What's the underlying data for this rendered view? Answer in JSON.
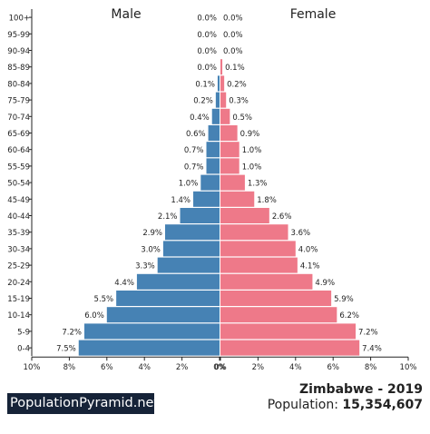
{
  "chart_data": {
    "type": "bar",
    "orientation": "horizontal-diverging",
    "male_label": "Male",
    "female_label": "Female",
    "categories": [
      "100+",
      "95-99",
      "90-94",
      "85-89",
      "80-84",
      "75-79",
      "70-74",
      "65-69",
      "60-64",
      "55-59",
      "50-54",
      "45-49",
      "40-44",
      "35-39",
      "30-34",
      "25-29",
      "20-24",
      "15-19",
      "10-14",
      "5-9",
      "0-4"
    ],
    "series": [
      {
        "name": "Male",
        "values": [
          0.0,
          0.0,
          0.0,
          0.0,
          0.1,
          0.2,
          0.4,
          0.6,
          0.7,
          0.7,
          1.0,
          1.4,
          2.1,
          2.9,
          3.0,
          3.3,
          4.4,
          5.5,
          6.0,
          7.2,
          7.5
        ],
        "color": "#4682b4"
      },
      {
        "name": "Female",
        "values": [
          0.0,
          0.0,
          0.0,
          0.1,
          0.2,
          0.3,
          0.5,
          0.9,
          1.0,
          1.0,
          1.3,
          1.8,
          2.6,
          3.6,
          4.0,
          4.1,
          4.9,
          5.9,
          6.2,
          7.2,
          7.4
        ],
        "color": "#ee7989"
      }
    ],
    "x_ticks": [
      "10%",
      "8%",
      "6%",
      "4%",
      "2%",
      "0%",
      "0%",
      "2%",
      "4%",
      "6%",
      "8%",
      "10%"
    ],
    "xlim": [
      -10,
      10
    ]
  },
  "footer": {
    "brand": "PopulationPyramid.net",
    "country_year": "Zimbabwe - 2019",
    "population_label": "Population: ",
    "population_value": "15,354,607"
  }
}
